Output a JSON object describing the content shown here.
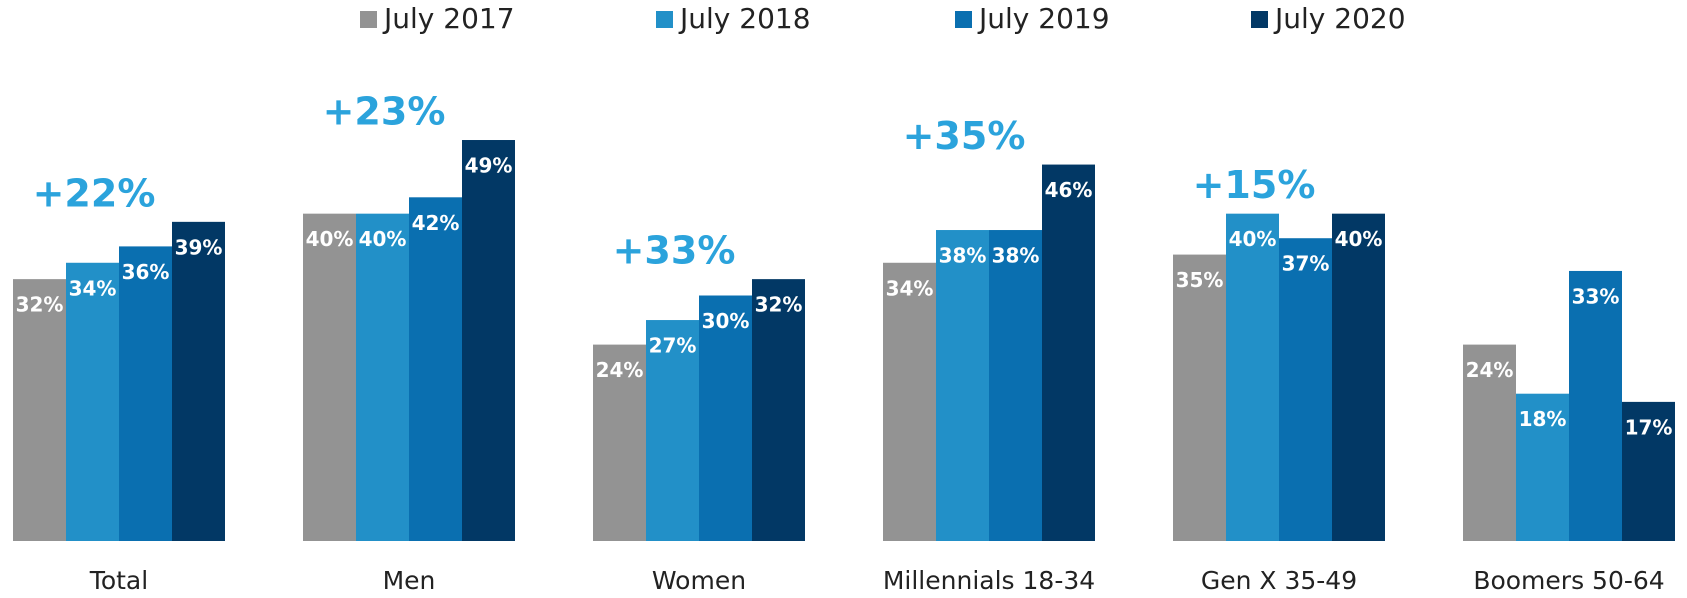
{
  "chart_data": {
    "type": "bar",
    "categories": [
      "Total",
      "Men",
      "Women",
      "Millennials 18-34",
      "Gen X 35-49",
      "Boomers 50-64"
    ],
    "series": [
      {
        "name": "July 2017",
        "color": "#939393",
        "values": [
          32,
          40,
          24,
          34,
          35,
          24
        ],
        "value_labels": [
          "32%",
          "40%",
          "24%",
          "34%",
          "35%",
          "24%"
        ]
      },
      {
        "name": "July 2018",
        "color": "#2290c8",
        "values": [
          34,
          40,
          27,
          38,
          40,
          18
        ],
        "value_labels": [
          "34%",
          "40%",
          "27%",
          "38%",
          "40%",
          "18%"
        ]
      },
      {
        "name": "July 2019",
        "color": "#0a6fb0",
        "values": [
          36,
          42,
          30,
          38,
          37,
          33
        ],
        "value_labels": [
          "36%",
          "42%",
          "30%",
          "38%",
          "37%",
          "33%"
        ]
      },
      {
        "name": "July 2020",
        "color": "#023865",
        "values": [
          39,
          49,
          32,
          46,
          40,
          17
        ],
        "value_labels": [
          "39%",
          "49%",
          "32%",
          "46%",
          "40%",
          "17%"
        ]
      }
    ],
    "annotations": [
      "+22%",
      "+23%",
      "+33%",
      "+35%",
      "+15%"
    ],
    "annotation_color": "#2ba3dc",
    "ylim": [
      0,
      60
    ],
    "legend": "top"
  }
}
